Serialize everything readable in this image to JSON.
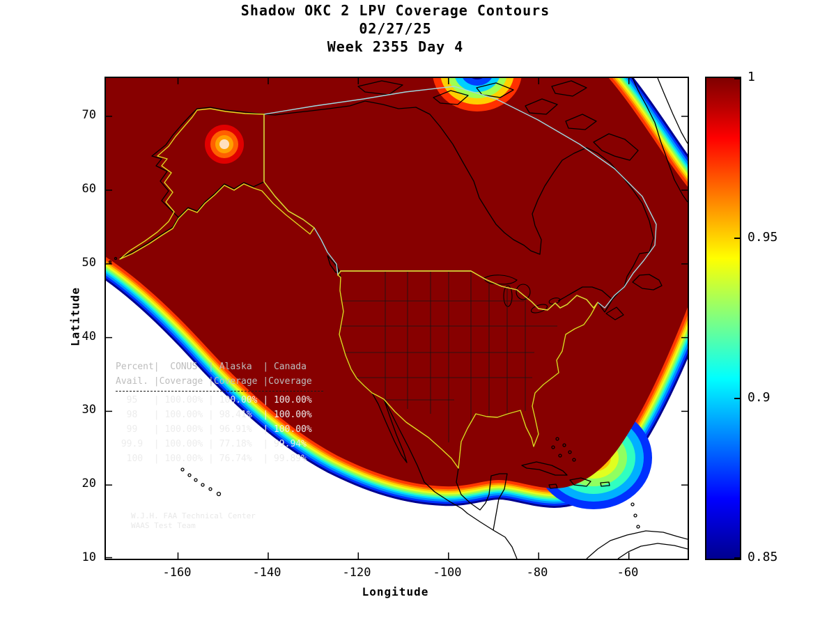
{
  "title": {
    "line1": "Shadow OKC 2 LPV Coverage Contours",
    "line2": "02/27/25",
    "line3": "Week 2355 Day 4"
  },
  "axes": {
    "x_label": "Longitude",
    "y_label": "Latitude",
    "x_ticks": [
      "-160",
      "-140",
      "-120",
      "-100",
      "-80",
      "-60"
    ],
    "y_ticks": [
      "70",
      "60",
      "50",
      "40",
      "30",
      "20",
      "10"
    ]
  },
  "colorbar": {
    "tick_labels": [
      "1",
      "0.95",
      "0.9",
      "0.85"
    ],
    "min": 0.85,
    "max": 1.0,
    "colormap": "jet",
    "colors_top_to_bottom": [
      "#7f0000",
      "#ff0000",
      "#ff8000",
      "#ffff00",
      "#80ff80",
      "#00ffff",
      "#0080ff",
      "#0000ff",
      "#00008f"
    ]
  },
  "coverage_table": {
    "header_row1": [
      "Percent",
      "CONUS",
      "Alaska",
      "Canada"
    ],
    "header_row2": [
      "Avail.",
      "Coverage",
      "Coverage",
      "Coverage"
    ],
    "rows": [
      [
        "95",
        "100.00%",
        "100.00%",
        "100.00%"
      ],
      [
        "98",
        "100.00%",
        "98.41%",
        "100.00%"
      ],
      [
        "99",
        "100.00%",
        "96.91%",
        "100.00%"
      ],
      [
        "99.9",
        "100.00%",
        "77.18%",
        "99.94%"
      ],
      [
        "100",
        "100.00%",
        "76.74%",
        "99.89%"
      ]
    ]
  },
  "credit": {
    "line1": "W.J.H. FAA Technical Center",
    "line2": "WAAS Test Team"
  },
  "chart_data": {
    "type": "heatmap",
    "title": "Shadow OKC 2 LPV Coverage Contours",
    "subtitle": [
      "02/27/25",
      "Week 2355 Day 4"
    ],
    "xlabel": "Longitude",
    "ylabel": "Latitude",
    "xlim": [
      -176,
      -47
    ],
    "ylim": [
      10,
      75
    ],
    "x_ticks": [
      -160,
      -140,
      -120,
      -100,
      -80,
      -60
    ],
    "y_ticks": [
      10,
      20,
      30,
      40,
      50,
      60,
      70
    ],
    "colorbar": {
      "range": [
        0.85,
        1.0
      ],
      "label_values": [
        1,
        0.95,
        0.9,
        0.85
      ],
      "colormap": "jet"
    },
    "description": "Filled LPV availability coverage contours over North America. Interior of coverage region is ~1.0 (dark red) covering Alaska, Canada and CONUS; rainbow fringe bands step down to 0.85 (blue) along the Pacific southwest edge, across Mexico near 20N, southeast of Florida/Bahamas (wide green-cyan patch), and across the northeast corner near Greenland. Small availability dip spot near (-150, 65) in Alaska. Yellow outlines mark CONUS and Alaska regions; light blue outline marks Canada region.",
    "availability_table": {
      "columns": [
        "Percent Avail.",
        "CONUS Coverage",
        "Alaska Coverage",
        "Canada Coverage"
      ],
      "rows": [
        [
          95,
          "100.00%",
          "100.00%",
          "100.00%"
        ],
        [
          98,
          "100.00%",
          "98.41%",
          "100.00%"
        ],
        [
          99,
          "100.00%",
          "96.91%",
          "100.00%"
        ],
        [
          99.9,
          "100.00%",
          "77.18%",
          "99.94%"
        ],
        [
          100,
          "100.00%",
          "76.74%",
          "99.89%"
        ]
      ]
    }
  }
}
